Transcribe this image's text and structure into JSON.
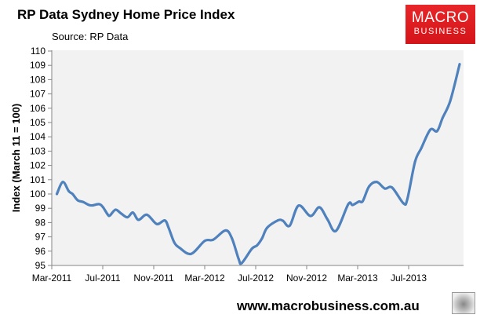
{
  "chart_data": {
    "type": "line",
    "title": "RP Data Sydney Home Price Index",
    "subtitle": "Source: RP Data",
    "xlabel": "",
    "ylabel": "Index (March 11 = 100)",
    "ylim": [
      95,
      110
    ],
    "yticks": [
      "95",
      "96",
      "97",
      "98",
      "99",
      "100",
      "101",
      "102",
      "103",
      "104",
      "105",
      "106",
      "107",
      "108",
      "109",
      "110"
    ],
    "xticks": [
      "Mar-2011",
      "Jul-2011",
      "Nov-2011",
      "Mar-2012",
      "Jul-2012",
      "Nov-2012",
      "Mar-2013",
      "Jul-2013"
    ],
    "grid": false,
    "legend": "none",
    "series_color": "#4f81bd",
    "plot_background": "#f2f2f2",
    "series": [
      {
        "x": [
          "2011-03-13",
          "2011-03-27",
          "2011-04-11",
          "2011-04-20",
          "2011-05-02",
          "2011-05-15",
          "2011-05-27",
          "2011-06-06",
          "2011-06-22",
          "2011-07-01",
          "2011-07-13",
          "2011-07-18",
          "2011-08-01",
          "2011-08-14",
          "2011-08-29",
          "2011-09-12",
          "2011-09-25",
          "2011-10-15",
          "2011-11-08",
          "2011-11-27",
          "2011-12-06",
          "2011-12-19",
          "2012-01-02",
          "2012-01-29",
          "2012-03-01",
          "2012-03-21",
          "2012-04-20",
          "2012-05-05",
          "2012-05-21",
          "2012-05-28",
          "2012-06-22",
          "2012-07-04",
          "2012-07-16",
          "2012-07-28",
          "2012-08-23",
          "2012-09-05",
          "2012-09-21",
          "2012-10-12",
          "2012-11-10",
          "2012-12-01",
          "2012-12-20",
          "2013-01-10",
          "2013-02-09",
          "2013-02-19",
          "2013-03-04",
          "2013-03-13",
          "2013-03-28",
          "2013-04-16",
          "2013-05-05",
          "2013-05-22",
          "2013-06-19",
          "2013-06-28",
          "2013-07-16",
          "2013-08-01",
          "2013-08-22",
          "2013-09-08",
          "2013-09-21",
          "2013-10-09",
          "2013-11-01"
        ],
        "values": [
          100.0,
          100.84,
          100.2,
          100.0,
          99.56,
          99.44,
          99.25,
          99.2,
          99.29,
          99.1,
          98.55,
          98.5,
          98.9,
          98.64,
          98.37,
          98.7,
          98.19,
          98.55,
          97.9,
          98.15,
          97.64,
          96.63,
          96.23,
          95.81,
          96.72,
          96.8,
          97.45,
          96.9,
          95.44,
          95.16,
          96.17,
          96.4,
          96.9,
          97.64,
          98.15,
          98.13,
          97.78,
          99.19,
          98.46,
          99.07,
          98.22,
          97.42,
          99.29,
          99.23,
          99.47,
          99.5,
          100.53,
          100.84,
          100.38,
          100.45,
          99.34,
          99.65,
          102.25,
          103.22,
          104.5,
          104.4,
          105.33,
          106.52,
          109.08
        ]
      }
    ]
  },
  "branding": {
    "logo_line1": "MACRO",
    "logo_line2": "BUSINESS",
    "url": "www.macrobusiness.com.au",
    "logo_color": "#e01e22"
  }
}
